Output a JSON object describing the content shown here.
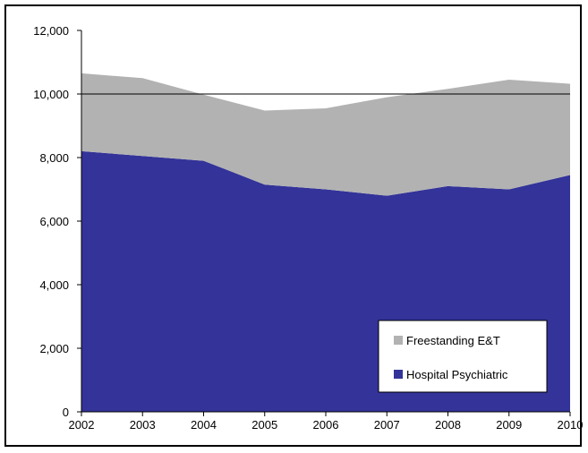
{
  "chart_data": {
    "type": "area",
    "stacked": true,
    "title": "",
    "xlabel": "",
    "ylabel": "",
    "x": [
      "2002",
      "2003",
      "2004",
      "2005",
      "2006",
      "2007",
      "2008",
      "2009",
      "2010"
    ],
    "ylim": [
      0,
      12000
    ],
    "yticks": [
      0,
      2000,
      4000,
      6000,
      8000,
      10000,
      12000
    ],
    "ytick_labels": [
      "0",
      "2,000",
      "4,000",
      "6,000",
      "8,000",
      "10,000",
      "12,000"
    ],
    "grid": "horizontal gridline at 10,000 only",
    "legend_position": "bottom-right",
    "series": [
      {
        "name": "Hospital Psychiatric",
        "color": "#333399",
        "values": [
          8200,
          8050,
          7900,
          7150,
          7000,
          6800,
          7100,
          7000,
          7450
        ]
      },
      {
        "name": "Freestanding E&T",
        "color": "#b2b2b2",
        "values": [
          2450,
          2450,
          2080,
          2330,
          2550,
          3100,
          3060,
          3450,
          2870
        ]
      }
    ]
  }
}
